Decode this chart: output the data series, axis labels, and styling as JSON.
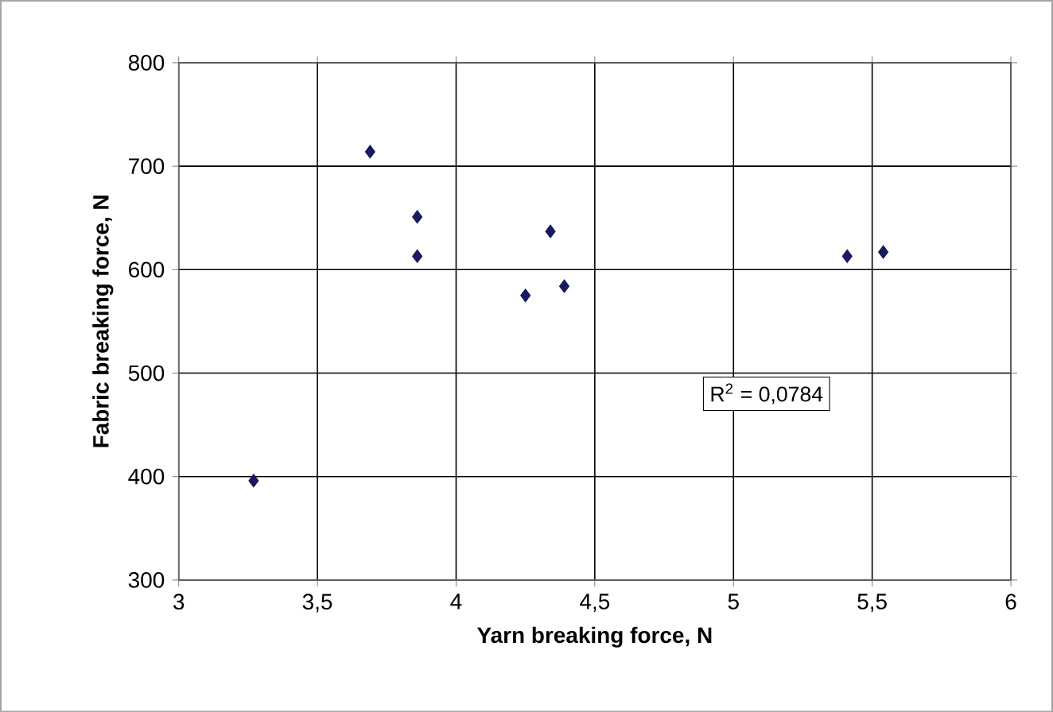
{
  "chart_data": {
    "type": "scatter",
    "xlabel": "Yarn breaking force, N",
    "ylabel": "Fabric breaking force, N",
    "x": [
      3.27,
      3.69,
      3.86,
      3.86,
      4.25,
      4.34,
      4.39,
      5.41,
      5.54
    ],
    "values": [
      396,
      714,
      651,
      613,
      575,
      637,
      584,
      613,
      617
    ],
    "color": "#1a1a5e",
    "marker": "diamond",
    "grid": true,
    "xlim": [
      3,
      6
    ],
    "xticks": [
      3,
      {
        "value": 3.5,
        "label": "3,5"
      },
      4,
      {
        "value": 4.5,
        "label": "4,5"
      },
      5,
      {
        "value": 5.5,
        "label": "5,5"
      },
      6
    ],
    "ylim": [
      300,
      800
    ],
    "yticks": [
      300,
      400,
      500,
      600,
      700,
      800
    ],
    "annotations": [
      "R$^{2}$ = 0,0784"
    ]
  }
}
